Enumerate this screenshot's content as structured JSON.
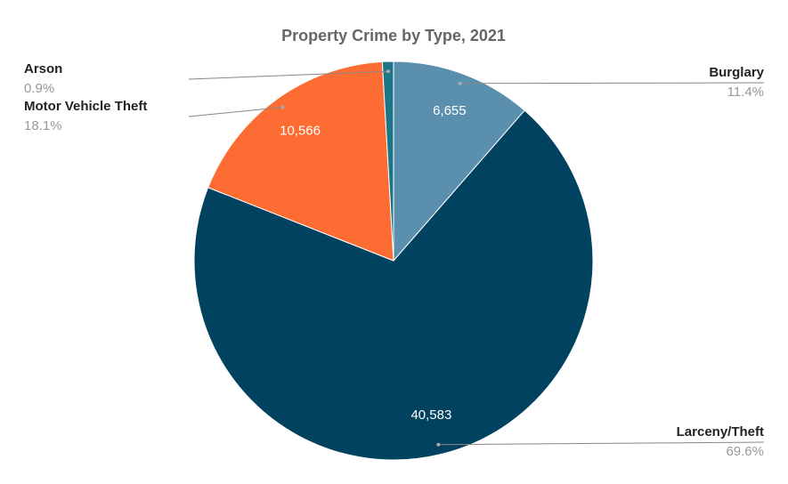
{
  "chart_data": {
    "type": "pie",
    "title": "Property Crime by Type, 2021",
    "categories": [
      "Burglary",
      "Larceny/Theft",
      "Motor Vehicle Theft",
      "Arson"
    ],
    "values": [
      6655,
      40583,
      10566,
      525
    ],
    "value_labels": [
      "6,655",
      "40,583",
      "10,566",
      null
    ],
    "percents": [
      {
        "value": 11.4,
        "label": "11.4%"
      },
      {
        "value": 69.6,
        "label": "69.6%"
      },
      {
        "value": 18.1,
        "label": "18.1%"
      },
      {
        "value": 0.9,
        "label": "0.9%"
      }
    ],
    "colors": [
      "#5b8fae",
      "#00425f",
      "#fd6c33",
      "#1c7688"
    ]
  }
}
